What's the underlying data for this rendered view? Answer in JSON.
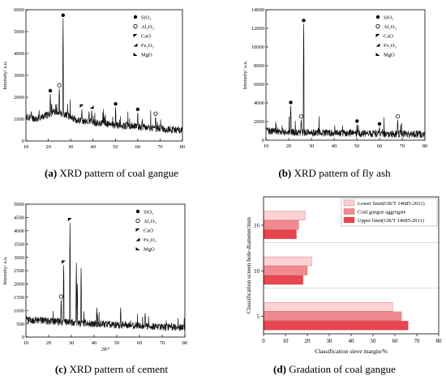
{
  "colors": {
    "trace": "#111111",
    "upper": "#e8454f",
    "coal": "#f08a90",
    "lower": "#fbd1d4",
    "frame": "#000000"
  },
  "panels": [
    {
      "letter": "(a)",
      "caption_text": "XRD pattern of coal gangue",
      "ylabel": "Intensity/ a.u.",
      "xlabel": "2θ/°",
      "legend": [
        "SiO₂",
        "Al₂O₃",
        "CaO",
        "Fe₂O₃",
        "MgO"
      ]
    },
    {
      "letter": "(b)",
      "caption_text": "XRD pattern of fly ash",
      "ylabel": "Intensity/ a.u.",
      "xlabel": "2θ/°",
      "legend": [
        "SiO₂",
        "Al₂O₃",
        "CaO",
        "Fe₂O₃",
        "MgO"
      ]
    },
    {
      "letter": "(c)",
      "caption_text": "XRD pattern of cement",
      "ylabel": "Intensity/ a.u.",
      "xlabel": "2θ/°",
      "legend": [
        "SiO₂",
        "Al₂O₃",
        "CaO",
        "Fe₂O₃",
        "MgO"
      ]
    },
    {
      "letter": "(d)",
      "caption_text": "Gradation of coal gangue",
      "ylabel": "Classification screen hole diameter/mm",
      "xlabel": "Classification sieve margin/%",
      "legend": [
        "Lower limit(GB/T 14685-2011)",
        "Coal gangue aggregate",
        "Upper limit(GB/T 14685-2011)"
      ]
    }
  ],
  "chart_data": [
    {
      "type": "line",
      "title": "",
      "xlabel": "2θ/°",
      "ylabel": "Intensity/ a.u.",
      "xlim": [
        10,
        80
      ],
      "ylim": [
        0,
        6000
      ],
      "xticks": [
        10,
        20,
        30,
        40,
        50,
        60,
        70,
        80
      ],
      "yticks": [
        0,
        1000,
        2000,
        3000,
        4000,
        5000,
        6000
      ],
      "baseline": [
        [
          10,
          1100
        ],
        [
          15,
          1020
        ],
        [
          20,
          1200
        ],
        [
          24,
          1350
        ],
        [
          28,
          1200
        ],
        [
          33,
          950
        ],
        [
          40,
          850
        ],
        [
          50,
          720
        ],
        [
          60,
          650
        ],
        [
          70,
          560
        ],
        [
          80,
          500
        ]
      ],
      "peaks": [
        [
          12.4,
          1350
        ],
        [
          20.9,
          2150
        ],
        [
          21.5,
          1700
        ],
        [
          23.8,
          1450
        ],
        [
          24.9,
          2400
        ],
        [
          26.6,
          5600
        ],
        [
          35,
          1450
        ],
        [
          38.2,
          1350
        ],
        [
          39.4,
          1400
        ],
        [
          45.5,
          1100
        ],
        [
          50.1,
          1550
        ],
        [
          55,
          900
        ],
        [
          60,
          1300
        ],
        [
          62,
          1000
        ],
        [
          68,
          1100
        ]
      ],
      "markers": [
        {
          "x": 20.9,
          "y": 2150,
          "phase": "SiO2"
        },
        {
          "x": 24.9,
          "y": 2400,
          "phase": "Al2O3"
        },
        {
          "x": 26.6,
          "y": 5600,
          "phase": "SiO2"
        },
        {
          "x": 35,
          "y": 1450,
          "phase": "CaO"
        },
        {
          "x": 39.4,
          "y": 1400,
          "phase": "Fe2O3"
        },
        {
          "x": 50.1,
          "y": 1550,
          "phase": "SiO2"
        },
        {
          "x": 60,
          "y": 1300,
          "phase": "SiO2"
        },
        {
          "x": 68,
          "y": 1100,
          "phase": "Al2O3"
        }
      ],
      "legend_position": "top-right",
      "series": [
        {
          "name": "SiO₂"
        },
        {
          "name": "Al₂O₃"
        },
        {
          "name": "CaO"
        },
        {
          "name": "Fe₂O₃"
        },
        {
          "name": "MgO"
        }
      ]
    },
    {
      "type": "line",
      "title": "",
      "xlabel": "2θ/°",
      "ylabel": "Intensity/ a.u.",
      "xlim": [
        10,
        80
      ],
      "ylim": [
        0,
        14000
      ],
      "xticks": [
        10,
        20,
        30,
        40,
        50,
        60,
        70,
        80
      ],
      "yticks": [
        0,
        2000,
        4000,
        6000,
        8000,
        10000,
        12000,
        14000
      ],
      "baseline": [
        [
          10,
          1000
        ],
        [
          20,
          850
        ],
        [
          30,
          800
        ],
        [
          40,
          780
        ],
        [
          50,
          720
        ],
        [
          60,
          680
        ],
        [
          70,
          650
        ],
        [
          80,
          620
        ]
      ],
      "peaks": [
        [
          20.9,
          3700
        ],
        [
          26.6,
          12500
        ],
        [
          25.5,
          2200
        ],
        [
          33,
          1300
        ],
        [
          36.5,
          1100
        ],
        [
          40.3,
          1000
        ],
        [
          50.1,
          1700
        ],
        [
          60,
          1400
        ],
        [
          68,
          2200
        ]
      ],
      "markers": [
        {
          "x": 20.9,
          "y": 3700,
          "phase": "SiO2"
        },
        {
          "x": 26.6,
          "y": 12500,
          "phase": "SiO2"
        },
        {
          "x": 25.5,
          "y": 2200,
          "phase": "Al2O3"
        },
        {
          "x": 50.1,
          "y": 1700,
          "phase": "SiO2"
        },
        {
          "x": 60,
          "y": 1400,
          "phase": "SiO2"
        },
        {
          "x": 68,
          "y": 2200,
          "phase": "Al2O3"
        }
      ],
      "legend_position": "top-right",
      "series": [
        {
          "name": "SiO₂"
        },
        {
          "name": "Al₂O₃"
        },
        {
          "name": "CaO"
        },
        {
          "name": "Fe₂O₃"
        },
        {
          "name": "MgO"
        }
      ]
    },
    {
      "type": "line",
      "title": "",
      "xlabel": "2θ/°",
      "ylabel": "Intensity/ a.u.",
      "xlim": [
        10,
        80
      ],
      "ylim": [
        0,
        5000
      ],
      "xticks": [
        10,
        20,
        30,
        40,
        50,
        60,
        70,
        80
      ],
      "yticks": [
        0,
        500,
        1000,
        1500,
        2000,
        2500,
        3000,
        3500,
        4000,
        4500,
        5000
      ],
      "baseline": [
        [
          10,
          650
        ],
        [
          20,
          600
        ],
        [
          30,
          550
        ],
        [
          40,
          500
        ],
        [
          50,
          450
        ],
        [
          60,
          420
        ],
        [
          70,
          380
        ],
        [
          80,
          350
        ]
      ],
      "peaks": [
        [
          25.5,
          1400
        ],
        [
          26.6,
          2700
        ],
        [
          29.4,
          4300
        ],
        [
          32.2,
          2800
        ],
        [
          32.6,
          2000
        ],
        [
          34.3,
          2600
        ],
        [
          41.2,
          1100
        ],
        [
          51.7,
          1100
        ],
        [
          62.5,
          900
        ]
      ],
      "markers": [
        {
          "x": 25.5,
          "y": 1400,
          "phase": "Al2O3"
        },
        {
          "x": 26.6,
          "y": 2700,
          "phase": "CaO"
        },
        {
          "x": 29.4,
          "y": 4300,
          "phase": "CaO"
        }
      ],
      "legend_position": "top-right",
      "series": [
        {
          "name": "SiO₂"
        },
        {
          "name": "Al₂O₃"
        },
        {
          "name": "CaO"
        },
        {
          "name": "Fe₂O₃"
        },
        {
          "name": "MgO"
        }
      ]
    },
    {
      "type": "bar",
      "orientation": "horizontal",
      "title": "",
      "xlabel": "Classification sieve margin/%",
      "ylabel": "Classification screen hole diameter/mm",
      "categories": [
        "16",
        "10",
        "5"
      ],
      "xlim": [
        0,
        80
      ],
      "xticks": [
        0,
        10,
        20,
        30,
        40,
        50,
        60,
        70,
        80
      ],
      "series": [
        {
          "name": "Lower limit(GB/T 14685-2011)",
          "values": [
            19,
            22,
            59
          ]
        },
        {
          "name": "Coal gangue aggregate",
          "values": [
            16,
            20,
            63
          ]
        },
        {
          "name": "Upper limit(GB/T 14685-2011)",
          "values": [
            15,
            18,
            66
          ]
        }
      ],
      "legend_position": "top-right"
    }
  ]
}
